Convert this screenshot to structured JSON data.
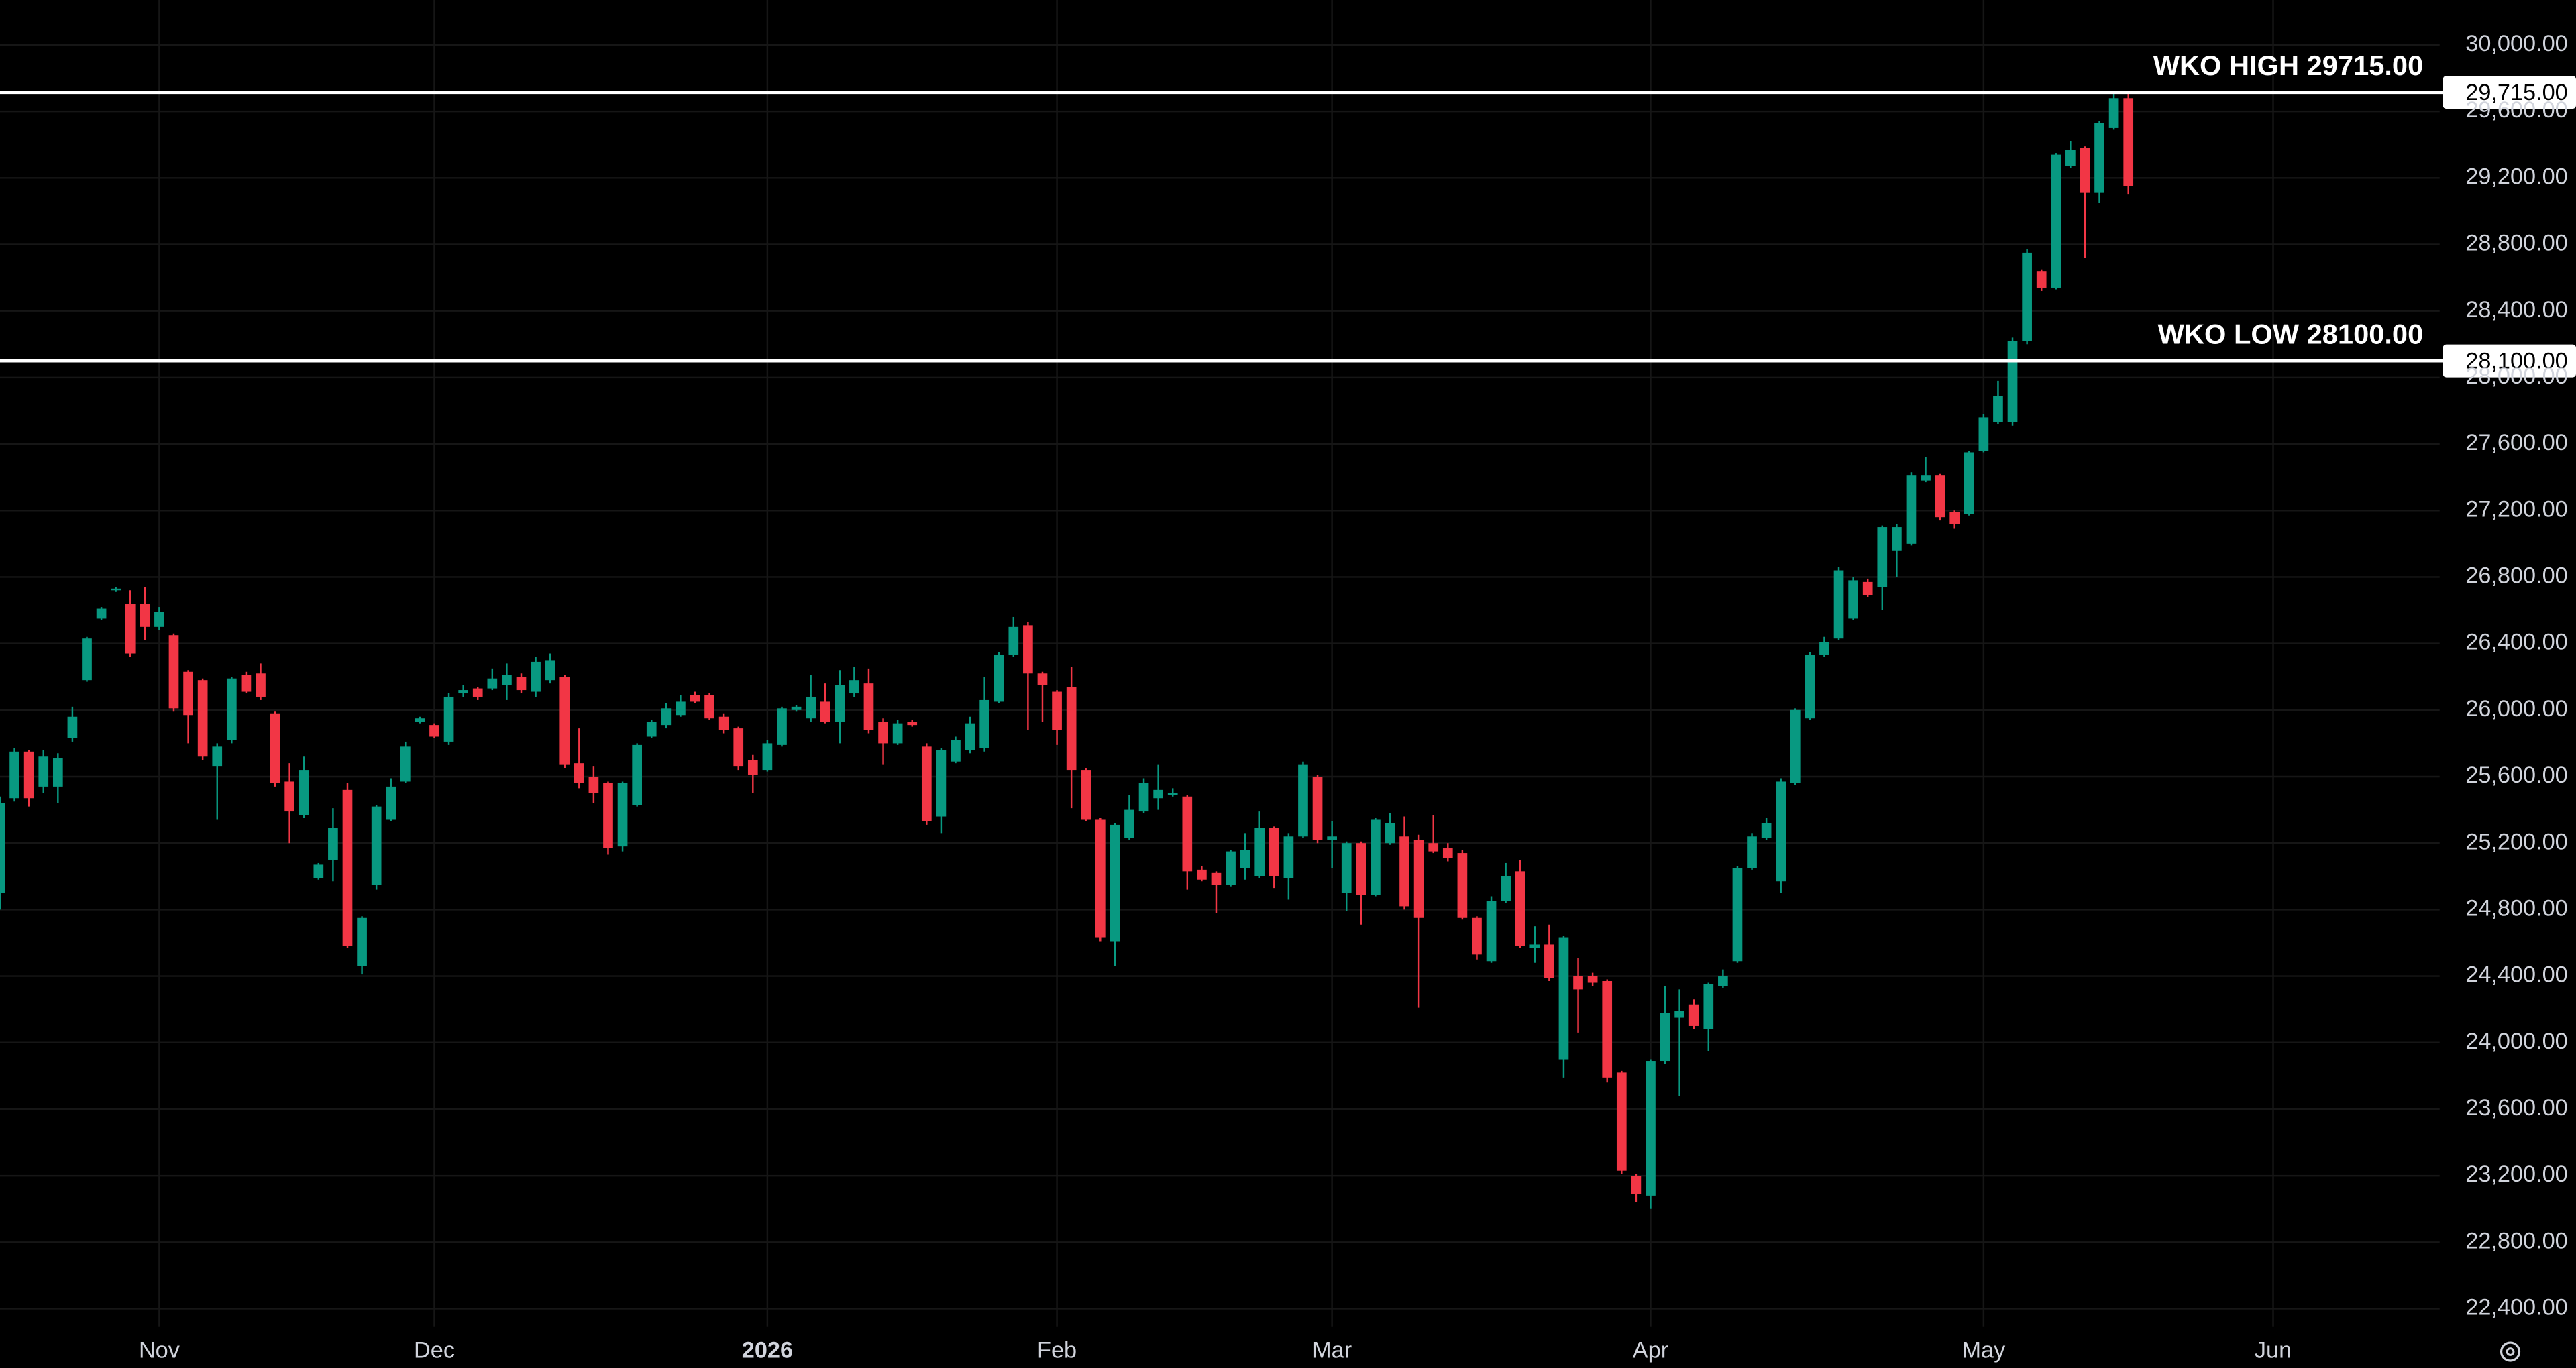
{
  "chart_data": {
    "type": "candlestick",
    "up_color": "#089981",
    "down_color": "#f23645",
    "grid": true,
    "x": [
      0,
      1,
      2,
      3,
      4,
      5,
      6,
      7,
      8,
      9,
      10,
      11,
      12,
      13,
      14,
      15,
      16,
      17,
      18,
      19,
      20,
      21,
      22,
      23,
      24,
      25,
      26,
      27,
      28,
      29,
      30,
      31,
      32,
      33,
      34,
      35,
      36,
      37,
      38,
      39,
      40,
      41,
      42,
      43,
      44,
      45,
      46,
      47,
      48,
      49,
      50,
      51,
      52,
      53,
      54,
      55,
      56,
      57,
      58,
      59,
      60,
      61,
      62,
      63,
      64,
      65,
      66,
      67,
      68,
      69,
      70,
      71,
      72,
      73,
      74,
      75,
      76,
      77,
      78,
      79,
      80,
      81,
      82,
      83,
      84,
      85,
      86,
      87,
      88,
      89,
      90,
      91,
      92,
      93,
      94,
      95,
      96,
      97,
      98,
      99,
      100,
      101,
      102,
      103,
      104,
      105,
      106,
      107,
      108,
      109,
      110,
      111,
      112,
      113,
      114,
      115,
      116,
      117,
      118,
      119,
      120,
      121,
      122,
      123,
      124,
      125,
      126,
      127,
      128,
      129,
      130,
      131,
      132,
      133,
      134,
      135,
      136,
      137,
      138,
      139,
      140,
      141,
      142,
      143,
      144,
      145,
      146,
      147
    ],
    "ohlc": [
      [
        24900,
        25480,
        24800,
        25440
      ],
      [
        25470,
        25770,
        25450,
        25750
      ],
      [
        25750,
        25760,
        25420,
        25470
      ],
      [
        25540,
        25760,
        25500,
        25720
      ],
      [
        25540,
        25740,
        25440,
        25710
      ],
      [
        25830,
        26020,
        25810,
        25960
      ],
      [
        26180,
        26440,
        26170,
        26430
      ],
      [
        26550,
        26620,
        26540,
        26610
      ],
      [
        26720,
        26740,
        26710,
        26730
      ],
      [
        26640,
        26720,
        26320,
        26340
      ],
      [
        26640,
        26740,
        26420,
        26500
      ],
      [
        26500,
        26620,
        26480,
        26590
      ],
      [
        26450,
        26460,
        25990,
        26010
      ],
      [
        26230,
        26240,
        25800,
        25970
      ],
      [
        26180,
        26190,
        25700,
        25720
      ],
      [
        25660,
        25800,
        25340,
        25780
      ],
      [
        25820,
        26200,
        25800,
        26190
      ],
      [
        26210,
        26230,
        26100,
        26110
      ],
      [
        26220,
        26280,
        26060,
        26080
      ],
      [
        25980,
        25990,
        25540,
        25560
      ],
      [
        25570,
        25680,
        25200,
        25390
      ],
      [
        25370,
        25720,
        25350,
        25640
      ],
      [
        24990,
        25080,
        24980,
        25070
      ],
      [
        25100,
        25410,
        24970,
        25290
      ],
      [
        25520,
        25560,
        24570,
        24580
      ],
      [
        24460,
        24760,
        24410,
        24750
      ],
      [
        24950,
        25430,
        24920,
        25420
      ],
      [
        25340,
        25590,
        25330,
        25540
      ],
      [
        25570,
        25810,
        25560,
        25780
      ],
      [
        25930,
        25960,
        25920,
        25950
      ],
      [
        25910,
        25920,
        25830,
        25840
      ],
      [
        25810,
        26100,
        25790,
        26080
      ],
      [
        26100,
        26150,
        26080,
        26120
      ],
      [
        26130,
        26140,
        26060,
        26080
      ],
      [
        26130,
        26250,
        26120,
        26190
      ],
      [
        26150,
        26280,
        26060,
        26210
      ],
      [
        26200,
        26220,
        26100,
        26120
      ],
      [
        26110,
        26320,
        26080,
        26290
      ],
      [
        26180,
        26340,
        26160,
        26300
      ],
      [
        26200,
        26210,
        25650,
        25670
      ],
      [
        25680,
        25890,
        25530,
        25560
      ],
      [
        25600,
        25660,
        25440,
        25500
      ],
      [
        25560,
        25570,
        25130,
        25170
      ],
      [
        25180,
        25570,
        25150,
        25560
      ],
      [
        25430,
        25800,
        25420,
        25790
      ],
      [
        25840,
        25940,
        25830,
        25930
      ],
      [
        25910,
        26040,
        25890,
        26010
      ],
      [
        25970,
        26090,
        25960,
        26050
      ],
      [
        26090,
        26110,
        26040,
        26050
      ],
      [
        26090,
        26100,
        25940,
        25950
      ],
      [
        25960,
        25980,
        25860,
        25880
      ],
      [
        25890,
        25900,
        25640,
        25660
      ],
      [
        25700,
        25730,
        25500,
        25610
      ],
      [
        25640,
        25820,
        25630,
        25800
      ],
      [
        25790,
        26020,
        25780,
        26010
      ],
      [
        26000,
        26030,
        25990,
        26020
      ],
      [
        25950,
        26210,
        25930,
        26080
      ],
      [
        26050,
        26160,
        25920,
        25930
      ],
      [
        25930,
        26240,
        25800,
        26150
      ],
      [
        26100,
        26260,
        26080,
        26180
      ],
      [
        26160,
        26250,
        25860,
        25880
      ],
      [
        25930,
        25950,
        25670,
        25800
      ],
      [
        25800,
        25940,
        25790,
        25920
      ],
      [
        25930,
        25940,
        25900,
        25910
      ],
      [
        25780,
        25800,
        25310,
        25330
      ],
      [
        25360,
        25770,
        25260,
        25760
      ],
      [
        25690,
        25840,
        25680,
        25820
      ],
      [
        25760,
        25960,
        25740,
        25920
      ],
      [
        25770,
        26200,
        25750,
        26060
      ],
      [
        26050,
        26350,
        26040,
        26330
      ],
      [
        26330,
        26560,
        26320,
        26500
      ],
      [
        26510,
        26530,
        25880,
        26220
      ],
      [
        26220,
        26230,
        25930,
        26150
      ],
      [
        26110,
        26120,
        25790,
        25880
      ],
      [
        26140,
        26260,
        25410,
        25640
      ],
      [
        25640,
        25650,
        25330,
        25340
      ],
      [
        25340,
        25350,
        24610,
        24630
      ],
      [
        24610,
        25320,
        24460,
        25310
      ],
      [
        25230,
        25490,
        25220,
        25400
      ],
      [
        25390,
        25590,
        25380,
        25560
      ],
      [
        25470,
        25670,
        25400,
        25520
      ],
      [
        25490,
        25530,
        25480,
        25500
      ],
      [
        25480,
        25490,
        24920,
        25030
      ],
      [
        25040,
        25060,
        24970,
        24980
      ],
      [
        25020,
        25030,
        24780,
        24950
      ],
      [
        24950,
        25160,
        24940,
        25150
      ],
      [
        25050,
        25260,
        24980,
        25160
      ],
      [
        25000,
        25390,
        24990,
        25290
      ],
      [
        25290,
        25300,
        24930,
        25000
      ],
      [
        24990,
        25260,
        24860,
        25240
      ],
      [
        25240,
        25690,
        25230,
        25670
      ],
      [
        25600,
        25610,
        25200,
        25220
      ],
      [
        25220,
        25330,
        25050,
        25240
      ],
      [
        24900,
        25210,
        24790,
        25200
      ],
      [
        25200,
        25210,
        24710,
        24890
      ],
      [
        24890,
        25350,
        24880,
        25340
      ],
      [
        25200,
        25380,
        25190,
        25320
      ],
      [
        25240,
        25360,
        24800,
        24820
      ],
      [
        25220,
        25250,
        24210,
        24750
      ],
      [
        25200,
        25370,
        25140,
        25150
      ],
      [
        25170,
        25200,
        25090,
        25110
      ],
      [
        25140,
        25160,
        24740,
        24750
      ],
      [
        24750,
        24760,
        24500,
        24530
      ],
      [
        24490,
        24880,
        24480,
        24850
      ],
      [
        24850,
        25080,
        24840,
        25000
      ],
      [
        25030,
        25100,
        24570,
        24580
      ],
      [
        24570,
        24700,
        24480,
        24590
      ],
      [
        24590,
        24710,
        24370,
        24390
      ],
      [
        23900,
        24640,
        23790,
        24630
      ],
      [
        24400,
        24510,
        24060,
        24320
      ],
      [
        24400,
        24420,
        24340,
        24360
      ],
      [
        24370,
        24380,
        23760,
        23790
      ],
      [
        23820,
        23830,
        23210,
        23230
      ],
      [
        23200,
        23210,
        23040,
        23090
      ],
      [
        23080,
        23900,
        23000,
        23890
      ],
      [
        23890,
        24340,
        23870,
        24180
      ],
      [
        24150,
        24320,
        23680,
        24190
      ],
      [
        24230,
        24260,
        24080,
        24100
      ],
      [
        24080,
        24360,
        23950,
        24350
      ],
      [
        24340,
        24440,
        24330,
        24400
      ],
      [
        24490,
        25060,
        24480,
        25050
      ],
      [
        25050,
        25260,
        25040,
        25240
      ],
      [
        25230,
        25350,
        25220,
        25320
      ],
      [
        24970,
        25590,
        24900,
        25570
      ],
      [
        25560,
        26010,
        25550,
        26000
      ],
      [
        25950,
        26350,
        25940,
        26330
      ],
      [
        26330,
        26440,
        26320,
        26410
      ],
      [
        26430,
        26860,
        26420,
        26840
      ],
      [
        26550,
        26800,
        26540,
        26780
      ],
      [
        26770,
        26790,
        26680,
        26690
      ],
      [
        26740,
        27110,
        26600,
        27100
      ],
      [
        26960,
        27120,
        26800,
        27100
      ],
      [
        27000,
        27430,
        26990,
        27410
      ],
      [
        27380,
        27520,
        27370,
        27410
      ],
      [
        27410,
        27420,
        27140,
        27160
      ],
      [
        27190,
        27200,
        27090,
        27120
      ],
      [
        27180,
        27560,
        27170,
        27550
      ],
      [
        27560,
        27780,
        27550,
        27760
      ],
      [
        27730,
        27980,
        27720,
        27890
      ],
      [
        27730,
        28240,
        27710,
        28220
      ],
      [
        28220,
        28770,
        28200,
        28750
      ],
      [
        28640,
        28650,
        28520,
        28540
      ],
      [
        28540,
        29350,
        28530,
        29340
      ],
      [
        29270,
        29420,
        29260,
        29370
      ],
      [
        29380,
        29390,
        28720,
        29110
      ],
      [
        29110,
        29540,
        29050,
        29530
      ],
      [
        29500,
        29720,
        29490,
        29680
      ],
      [
        29680,
        29715,
        29100,
        29150
      ]
    ],
    "xlim": [
      0,
      168.5
    ],
    "xticks": [
      {
        "value": 11,
        "label": "Nov"
      },
      {
        "value": 30,
        "label": "Dec"
      },
      {
        "value": 53,
        "label": "2026"
      },
      {
        "value": 73,
        "label": "Feb"
      },
      {
        "value": 92,
        "label": "Mar"
      },
      {
        "value": 114,
        "label": "Apr"
      },
      {
        "value": 137,
        "label": "May"
      },
      {
        "value": 157,
        "label": "Jun"
      }
    ],
    "ylim": [
      22290,
      30270
    ],
    "yticks": [
      {
        "value": 22400,
        "label": "22,400.00"
      },
      {
        "value": 22800,
        "label": "22,800.00"
      },
      {
        "value": 23200,
        "label": "23,200.00"
      },
      {
        "value": 23600,
        "label": "23,600.00"
      },
      {
        "value": 24000,
        "label": "24,000.00"
      },
      {
        "value": 24400,
        "label": "24,400.00"
      },
      {
        "value": 24800,
        "label": "24,800.00"
      },
      {
        "value": 25200,
        "label": "25,200.00"
      },
      {
        "value": 25600,
        "label": "25,600.00"
      },
      {
        "value": 26000,
        "label": "26,000.00"
      },
      {
        "value": 26400,
        "label": "26,400.00"
      },
      {
        "value": 26800,
        "label": "26,800.00"
      },
      {
        "value": 27200,
        "label": "27,200.00"
      },
      {
        "value": 27600,
        "label": "27,600.00"
      },
      {
        "value": 28000,
        "label": "28,000.00"
      },
      {
        "value": 28400,
        "label": "28,400.00"
      },
      {
        "value": 28800,
        "label": "28,800.00"
      },
      {
        "value": 29200,
        "label": "29,200.00"
      },
      {
        "value": 29600,
        "label": "29,600.00"
      },
      {
        "value": 30000,
        "label": "30,000.00"
      }
    ],
    "horizontal_lines": [
      {
        "label": "WKO HIGH 29715.00",
        "value": 29715,
        "price_label": "29,715.00"
      },
      {
        "label": "WKO LOW 28100.00",
        "value": 28100,
        "price_label": "28,100.00"
      }
    ]
  }
}
